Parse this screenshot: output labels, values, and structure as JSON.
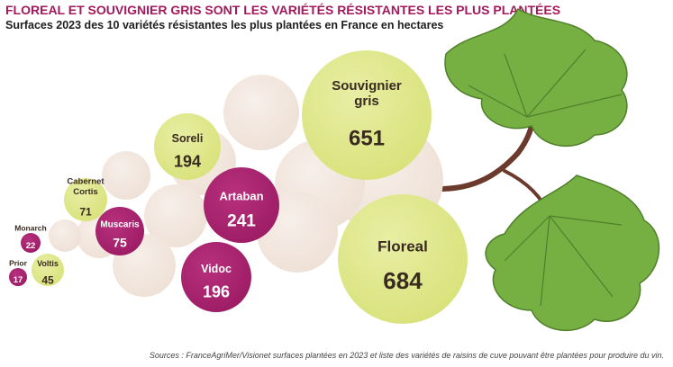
{
  "title": "FLOREAL ET SOUVIGNIER GRIS SONT LES VARIÉTÉS RÉSISTANTES LES PLUS PLANTÉES",
  "subtitle": "Surfaces 2023 des 10 variétés résistantes les plus plantées en France en hectares",
  "source": "Sources : FranceAgriMer/Visionet surfaces plantées en 2023 et liste des variétés de raisins de cuve pouvant être plantées pour produire du vin.",
  "colors": {
    "yellow": "#d8e27a",
    "magenta": "#9c1c64",
    "beige": "#eee0d6",
    "leaf": "#76b043",
    "stem": "#6b3a2c"
  },
  "chart_data": {
    "type": "bubble",
    "unit": "hectares",
    "series": [
      {
        "name": "Floreal",
        "value": 684,
        "color": "yellow"
      },
      {
        "name": "Souvignier gris",
        "value": 651,
        "color": "yellow"
      },
      {
        "name": "Artaban",
        "value": 241,
        "color": "magenta"
      },
      {
        "name": "Vidoc",
        "value": 196,
        "color": "magenta"
      },
      {
        "name": "Soreli",
        "value": 194,
        "color": "yellow"
      },
      {
        "name": "Muscaris",
        "value": 75,
        "color": "magenta"
      },
      {
        "name": "Cabernet Cortis",
        "value": 71,
        "color": "yellow"
      },
      {
        "name": "Voltis",
        "value": 45,
        "color": "yellow"
      },
      {
        "name": "Monarch",
        "value": 22,
        "color": "magenta"
      },
      {
        "name": "Prior",
        "value": 17,
        "color": "magenta"
      }
    ]
  }
}
